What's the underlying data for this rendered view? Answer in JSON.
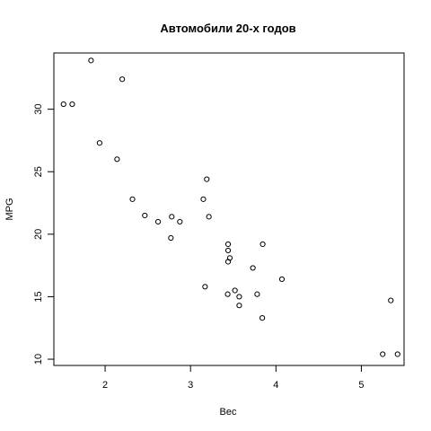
{
  "chart_data": {
    "type": "scatter",
    "title": "Автомобили 20-х годов",
    "xlabel": "Вес",
    "ylabel": "MPG",
    "xlim": [
      1.4,
      5.5
    ],
    "ylim": [
      9.5,
      34.5
    ],
    "xticks": [
      2,
      3,
      4,
      5
    ],
    "yticks": [
      10,
      15,
      20,
      25,
      30
    ],
    "grid": false,
    "points": [
      {
        "x": 2.62,
        "y": 21.0
      },
      {
        "x": 2.875,
        "y": 21.0
      },
      {
        "x": 2.32,
        "y": 22.8
      },
      {
        "x": 3.215,
        "y": 21.4
      },
      {
        "x": 3.44,
        "y": 18.7
      },
      {
        "x": 3.46,
        "y": 18.1
      },
      {
        "x": 3.57,
        "y": 14.3
      },
      {
        "x": 3.19,
        "y": 24.4
      },
      {
        "x": 3.15,
        "y": 22.8
      },
      {
        "x": 3.44,
        "y": 19.2
      },
      {
        "x": 3.44,
        "y": 17.8
      },
      {
        "x": 4.07,
        "y": 16.4
      },
      {
        "x": 3.73,
        "y": 17.3
      },
      {
        "x": 3.78,
        "y": 15.2
      },
      {
        "x": 5.25,
        "y": 10.4
      },
      {
        "x": 5.424,
        "y": 10.4
      },
      {
        "x": 5.345,
        "y": 14.7
      },
      {
        "x": 2.2,
        "y": 32.4
      },
      {
        "x": 1.615,
        "y": 30.4
      },
      {
        "x": 1.835,
        "y": 33.9
      },
      {
        "x": 2.465,
        "y": 21.5
      },
      {
        "x": 3.52,
        "y": 15.5
      },
      {
        "x": 3.435,
        "y": 15.2
      },
      {
        "x": 3.84,
        "y": 13.3
      },
      {
        "x": 3.845,
        "y": 19.2
      },
      {
        "x": 1.935,
        "y": 27.3
      },
      {
        "x": 2.14,
        "y": 26.0
      },
      {
        "x": 1.513,
        "y": 30.4
      },
      {
        "x": 3.17,
        "y": 15.8
      },
      {
        "x": 2.77,
        "y": 19.7
      },
      {
        "x": 3.57,
        "y": 15.0
      },
      {
        "x": 2.78,
        "y": 21.4
      }
    ]
  }
}
